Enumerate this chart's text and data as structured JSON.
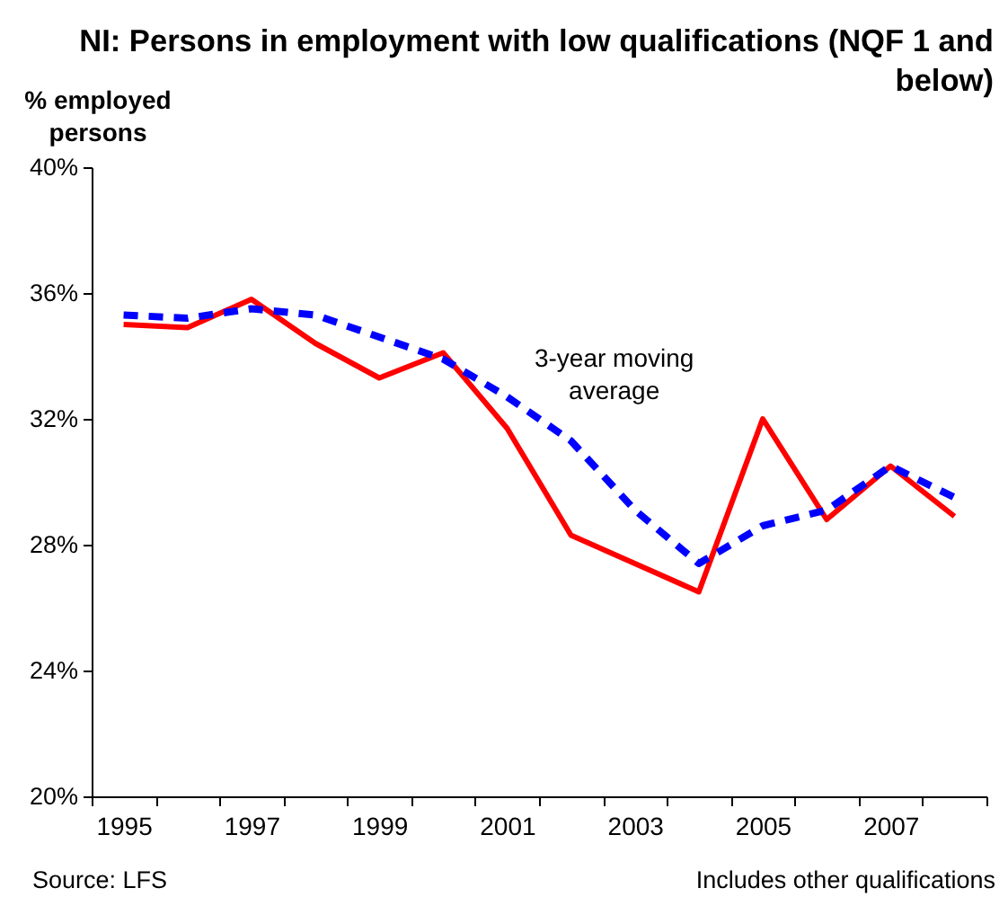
{
  "chart_data": {
    "type": "line",
    "title": "NI: Persons in employment with low qualifications (NQF 1 and below)",
    "ylabel": "% employed persons",
    "categories": [
      "1995",
      null,
      "1997",
      null,
      "1999",
      null,
      "2001",
      null,
      "2003",
      null,
      "2005",
      null,
      "2007",
      null
    ],
    "series": [
      {
        "color": "#ff0000",
        "line_style": "solid",
        "values": [
          35.0,
          34.9,
          35.8,
          34.4,
          33.3,
          34.1,
          31.7,
          28.3,
          27.4,
          26.5,
          32.0,
          28.8,
          30.5,
          28.9
        ]
      },
      {
        "name": "3-year moving average",
        "color": "#0000ff",
        "line_style": "dashed",
        "values": [
          35.3,
          35.2,
          35.5,
          35.3,
          34.6,
          33.9,
          32.7,
          31.3,
          29.1,
          27.4,
          28.6,
          29.1,
          30.5,
          29.5
        ]
      }
    ],
    "ylim": [
      20,
      40
    ],
    "yticks": [
      {
        "value": 20,
        "label": "20%"
      },
      {
        "value": 24,
        "label": "24%"
      },
      {
        "value": 28,
        "label": "28%"
      },
      {
        "value": 32,
        "label": "32%"
      },
      {
        "value": 36,
        "label": "36%"
      },
      {
        "value": 40,
        "label": "40%"
      }
    ],
    "annotations": [
      "Source: LFS",
      "Includes other qualifications"
    ]
  }
}
